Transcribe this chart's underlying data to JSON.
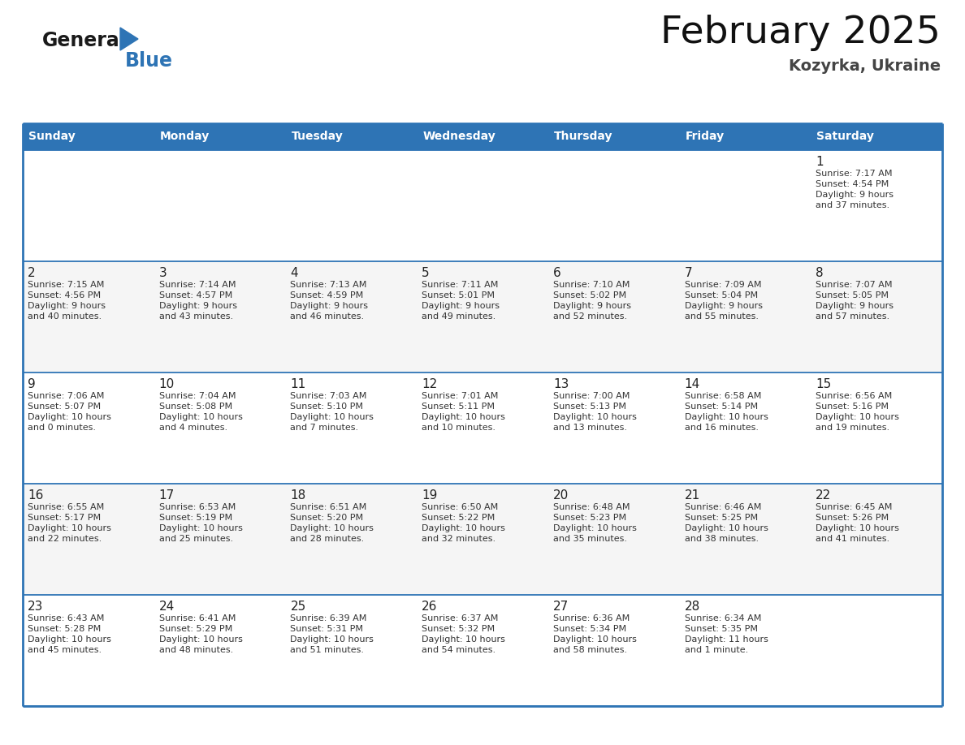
{
  "title": "February 2025",
  "subtitle": "Kozyrka, Ukraine",
  "header_bg": "#2E74B5",
  "header_text_color": "#FFFFFF",
  "days_of_week": [
    "Sunday",
    "Monday",
    "Tuesday",
    "Wednesday",
    "Thursday",
    "Friday",
    "Saturday"
  ],
  "bg_color": "#FFFFFF",
  "border_color": "#2E74B5",
  "line_color": "#AAAACC",
  "day_num_color": "#222222",
  "cell_text_color": "#333333",
  "calendar": [
    [
      null,
      null,
      null,
      null,
      null,
      null,
      {
        "day": "1",
        "sunrise": "7:17 AM",
        "sunset": "4:54 PM",
        "daylight": "9 hours",
        "daylight2": "and 37 minutes."
      }
    ],
    [
      {
        "day": "2",
        "sunrise": "7:15 AM",
        "sunset": "4:56 PM",
        "daylight": "9 hours",
        "daylight2": "and 40 minutes."
      },
      {
        "day": "3",
        "sunrise": "7:14 AM",
        "sunset": "4:57 PM",
        "daylight": "9 hours",
        "daylight2": "and 43 minutes."
      },
      {
        "day": "4",
        "sunrise": "7:13 AM",
        "sunset": "4:59 PM",
        "daylight": "9 hours",
        "daylight2": "and 46 minutes."
      },
      {
        "day": "5",
        "sunrise": "7:11 AM",
        "sunset": "5:01 PM",
        "daylight": "9 hours",
        "daylight2": "and 49 minutes."
      },
      {
        "day": "6",
        "sunrise": "7:10 AM",
        "sunset": "5:02 PM",
        "daylight": "9 hours",
        "daylight2": "and 52 minutes."
      },
      {
        "day": "7",
        "sunrise": "7:09 AM",
        "sunset": "5:04 PM",
        "daylight": "9 hours",
        "daylight2": "and 55 minutes."
      },
      {
        "day": "8",
        "sunrise": "7:07 AM",
        "sunset": "5:05 PM",
        "daylight": "9 hours",
        "daylight2": "and 57 minutes."
      }
    ],
    [
      {
        "day": "9",
        "sunrise": "7:06 AM",
        "sunset": "5:07 PM",
        "daylight": "10 hours",
        "daylight2": "and 0 minutes."
      },
      {
        "day": "10",
        "sunrise": "7:04 AM",
        "sunset": "5:08 PM",
        "daylight": "10 hours",
        "daylight2": "and 4 minutes."
      },
      {
        "day": "11",
        "sunrise": "7:03 AM",
        "sunset": "5:10 PM",
        "daylight": "10 hours",
        "daylight2": "and 7 minutes."
      },
      {
        "day": "12",
        "sunrise": "7:01 AM",
        "sunset": "5:11 PM",
        "daylight": "10 hours",
        "daylight2": "and 10 minutes."
      },
      {
        "day": "13",
        "sunrise": "7:00 AM",
        "sunset": "5:13 PM",
        "daylight": "10 hours",
        "daylight2": "and 13 minutes."
      },
      {
        "day": "14",
        "sunrise": "6:58 AM",
        "sunset": "5:14 PM",
        "daylight": "10 hours",
        "daylight2": "and 16 minutes."
      },
      {
        "day": "15",
        "sunrise": "6:56 AM",
        "sunset": "5:16 PM",
        "daylight": "10 hours",
        "daylight2": "and 19 minutes."
      }
    ],
    [
      {
        "day": "16",
        "sunrise": "6:55 AM",
        "sunset": "5:17 PM",
        "daylight": "10 hours",
        "daylight2": "and 22 minutes."
      },
      {
        "day": "17",
        "sunrise": "6:53 AM",
        "sunset": "5:19 PM",
        "daylight": "10 hours",
        "daylight2": "and 25 minutes."
      },
      {
        "day": "18",
        "sunrise": "6:51 AM",
        "sunset": "5:20 PM",
        "daylight": "10 hours",
        "daylight2": "and 28 minutes."
      },
      {
        "day": "19",
        "sunrise": "6:50 AM",
        "sunset": "5:22 PM",
        "daylight": "10 hours",
        "daylight2": "and 32 minutes."
      },
      {
        "day": "20",
        "sunrise": "6:48 AM",
        "sunset": "5:23 PM",
        "daylight": "10 hours",
        "daylight2": "and 35 minutes."
      },
      {
        "day": "21",
        "sunrise": "6:46 AM",
        "sunset": "5:25 PM",
        "daylight": "10 hours",
        "daylight2": "and 38 minutes."
      },
      {
        "day": "22",
        "sunrise": "6:45 AM",
        "sunset": "5:26 PM",
        "daylight": "10 hours",
        "daylight2": "and 41 minutes."
      }
    ],
    [
      {
        "day": "23",
        "sunrise": "6:43 AM",
        "sunset": "5:28 PM",
        "daylight": "10 hours",
        "daylight2": "and 45 minutes."
      },
      {
        "day": "24",
        "sunrise": "6:41 AM",
        "sunset": "5:29 PM",
        "daylight": "10 hours",
        "daylight2": "and 48 minutes."
      },
      {
        "day": "25",
        "sunrise": "6:39 AM",
        "sunset": "5:31 PM",
        "daylight": "10 hours",
        "daylight2": "and 51 minutes."
      },
      {
        "day": "26",
        "sunrise": "6:37 AM",
        "sunset": "5:32 PM",
        "daylight": "10 hours",
        "daylight2": "and 54 minutes."
      },
      {
        "day": "27",
        "sunrise": "6:36 AM",
        "sunset": "5:34 PM",
        "daylight": "10 hours",
        "daylight2": "and 58 minutes."
      },
      {
        "day": "28",
        "sunrise": "6:34 AM",
        "sunset": "5:35 PM",
        "daylight": "11 hours",
        "daylight2": "and 1 minute."
      },
      null
    ]
  ]
}
